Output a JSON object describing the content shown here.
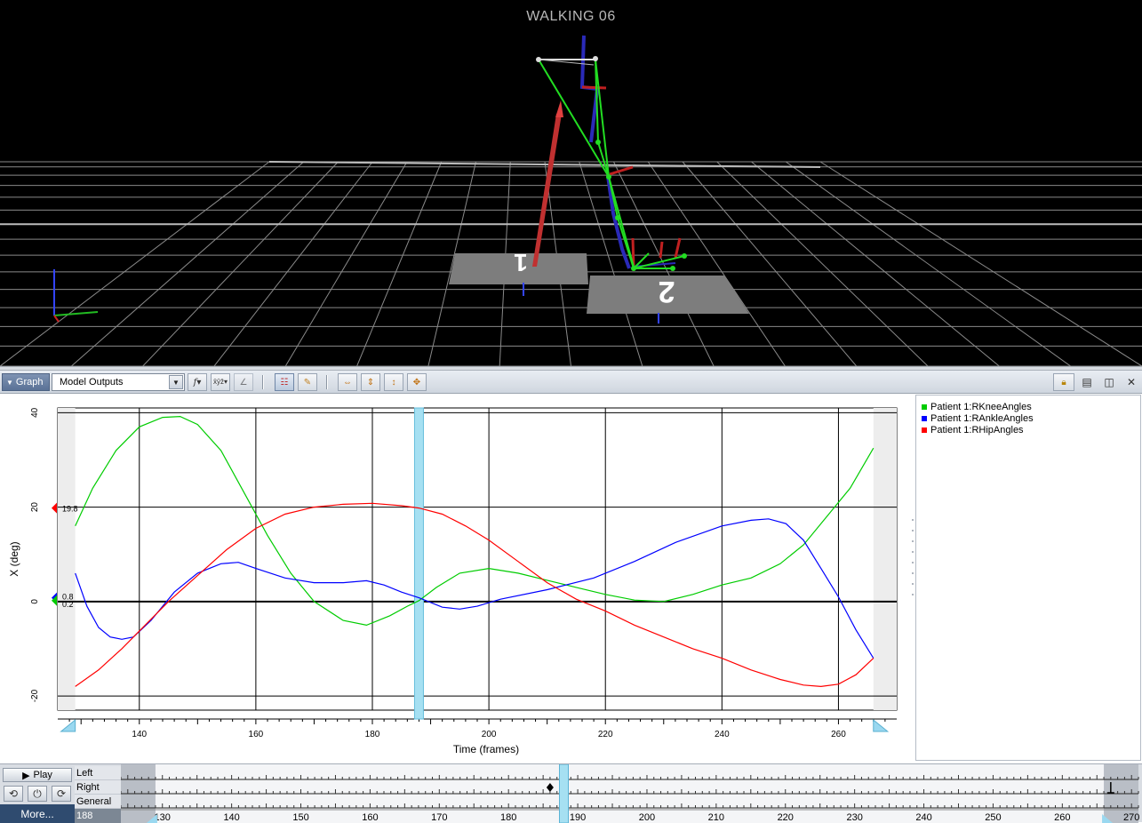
{
  "scene": {
    "title": "WALKING 06",
    "plates": [
      "1",
      "2"
    ]
  },
  "toolbar": {
    "pane_label": "Graph",
    "outputs_value": "Model Outputs",
    "icons": [
      "function-select-icon",
      "xyz-components-icon",
      "angle-icon",
      "legend-toggle-icon",
      "clear-graph-icon",
      "zoom-fit-icon",
      "zoom-y-icon",
      "zoom-x-icon",
      "pan-icon",
      "lock-icon",
      "split-horizontal-icon",
      "split-vertical-icon",
      "close-icon"
    ]
  },
  "legend": {
    "items": [
      {
        "label": "Patient 1:RKneeAngles",
        "color": "#00cc00"
      },
      {
        "label": "Patient 1:RAnkleAngles",
        "color": "#0000ff"
      },
      {
        "label": "Patient 1:RHipAngles",
        "color": "#ff0000"
      }
    ]
  },
  "markers": {
    "hip": "19.8",
    "ankle": "0.8",
    "knee": "0.2"
  },
  "chart_data": {
    "type": "line",
    "xlabel": "Time (frames)",
    "ylabel": "X (deg)",
    "xlim": [
      126,
      270
    ],
    "ylim": [
      -23,
      41
    ],
    "xticks": [
      140,
      160,
      180,
      200,
      220,
      240,
      260
    ],
    "yticks": [
      -20,
      0,
      20,
      40
    ],
    "current_frame": 188,
    "range_bounds": [
      129,
      266
    ],
    "grid": true,
    "series": [
      {
        "name": "Patient 1:RKneeAngles",
        "color": "#00cc00",
        "points": [
          [
            129,
            16
          ],
          [
            132,
            24
          ],
          [
            136,
            32
          ],
          [
            140,
            37
          ],
          [
            144,
            39
          ],
          [
            147,
            39.2
          ],
          [
            150,
            37.5
          ],
          [
            154,
            32
          ],
          [
            158,
            23
          ],
          [
            162,
            14
          ],
          [
            166,
            6
          ],
          [
            170,
            0
          ],
          [
            175,
            -4
          ],
          [
            179,
            -5
          ],
          [
            183,
            -3
          ],
          [
            186,
            -1
          ],
          [
            188,
            0.2
          ],
          [
            191,
            3
          ],
          [
            195,
            6
          ],
          [
            200,
            7
          ],
          [
            205,
            6
          ],
          [
            210,
            4.5
          ],
          [
            215,
            3
          ],
          [
            220,
            1.5
          ],
          [
            225,
            0.3
          ],
          [
            230,
            0
          ],
          [
            235,
            1.5
          ],
          [
            240,
            3.5
          ],
          [
            245,
            5
          ],
          [
            250,
            8
          ],
          [
            254,
            12
          ],
          [
            258,
            18
          ],
          [
            262,
            24
          ],
          [
            266,
            32.5
          ]
        ]
      },
      {
        "name": "Patient 1:RAnkleAngles",
        "color": "#0000ff",
        "points": [
          [
            129,
            6
          ],
          [
            131,
            -1
          ],
          [
            133,
            -5.5
          ],
          [
            135,
            -7.5
          ],
          [
            137,
            -8
          ],
          [
            139,
            -7.5
          ],
          [
            142,
            -4
          ],
          [
            146,
            2
          ],
          [
            150,
            6
          ],
          [
            154,
            8
          ],
          [
            157,
            8.3
          ],
          [
            160,
            7
          ],
          [
            165,
            5
          ],
          [
            170,
            4
          ],
          [
            175,
            4
          ],
          [
            179,
            4.4
          ],
          [
            182,
            3.5
          ],
          [
            185,
            2
          ],
          [
            188,
            0.8
          ],
          [
            192,
            -1.2
          ],
          [
            195,
            -1.6
          ],
          [
            198,
            -1
          ],
          [
            202,
            0.5
          ],
          [
            210,
            2.5
          ],
          [
            218,
            5
          ],
          [
            225,
            8.5
          ],
          [
            232,
            12.5
          ],
          [
            240,
            16
          ],
          [
            245,
            17.2
          ],
          [
            248,
            17.5
          ],
          [
            251,
            16.5
          ],
          [
            254,
            13
          ],
          [
            257,
            7
          ],
          [
            260,
            1
          ],
          [
            263,
            -6
          ],
          [
            266,
            -12
          ]
        ]
      },
      {
        "name": "Patient 1:RHipAngles",
        "color": "#ff0000",
        "points": [
          [
            129,
            -18
          ],
          [
            133,
            -14.5
          ],
          [
            137,
            -10
          ],
          [
            141,
            -5
          ],
          [
            145,
            0
          ],
          [
            150,
            5.5
          ],
          [
            155,
            11
          ],
          [
            160,
            15.5
          ],
          [
            165,
            18.5
          ],
          [
            170,
            20
          ],
          [
            175,
            20.6
          ],
          [
            180,
            20.8
          ],
          [
            185,
            20.3
          ],
          [
            188,
            19.8
          ],
          [
            192,
            18.5
          ],
          [
            196,
            16
          ],
          [
            200,
            13
          ],
          [
            205,
            8.5
          ],
          [
            210,
            4
          ],
          [
            215,
            0.5
          ],
          [
            220,
            -2
          ],
          [
            225,
            -5
          ],
          [
            230,
            -7.5
          ],
          [
            235,
            -10
          ],
          [
            240,
            -12
          ],
          [
            245,
            -14.5
          ],
          [
            250,
            -16.5
          ],
          [
            254,
            -17.7
          ],
          [
            257,
            -18
          ],
          [
            260,
            -17.5
          ],
          [
            263,
            -15.5
          ],
          [
            266,
            -12
          ]
        ]
      }
    ]
  },
  "timebar": {
    "play_label": "Play",
    "more_label": "More...",
    "tracks": [
      "Left",
      "Right",
      "General"
    ],
    "frame_readout": "188",
    "tick_labels": [
      "130",
      "140",
      "150",
      "160",
      "170",
      "180",
      "190",
      "200",
      "210",
      "220",
      "230",
      "240",
      "250",
      "260",
      "270"
    ],
    "range": [
      124,
      271
    ],
    "current_frame": 188,
    "right_event_frame": 186
  }
}
